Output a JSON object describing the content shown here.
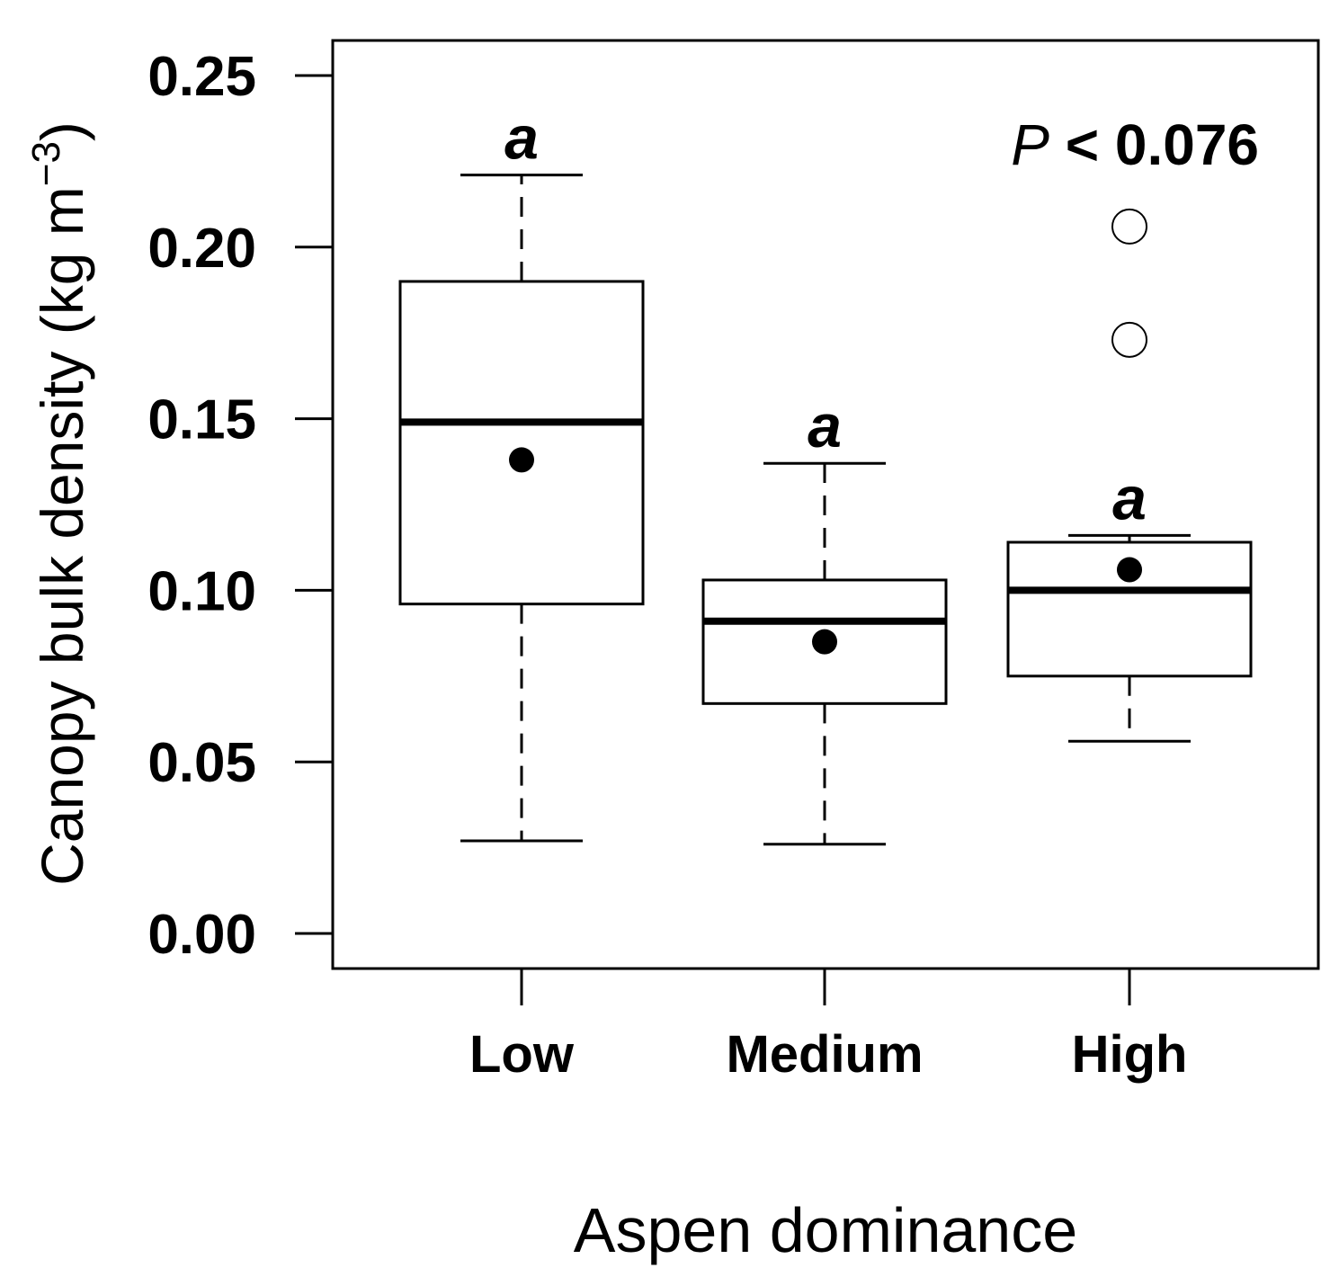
{
  "chart_data": {
    "type": "box",
    "title": "",
    "xlabel": "Aspen dominance",
    "ylabel": "Canopy bulk density (kg m",
    "ylabel_sup": "−3",
    "ylabel_close": ")",
    "ylim": [
      0.0,
      0.25
    ],
    "yticks": [
      0.0,
      0.05,
      0.1,
      0.15,
      0.2,
      0.25
    ],
    "ytick_labels": [
      "0.00",
      "0.05",
      "0.10",
      "0.15",
      "0.20",
      "0.25"
    ],
    "categories": [
      "Low",
      "Medium",
      "High"
    ],
    "boxes": [
      {
        "category": "Low",
        "whisker_low": 0.027,
        "q1": 0.096,
        "median": 0.149,
        "q3": 0.19,
        "whisker_high": 0.221,
        "mean": 0.138,
        "outliers": [],
        "letter": "a"
      },
      {
        "category": "Medium",
        "whisker_low": 0.026,
        "q1": 0.067,
        "median": 0.091,
        "q3": 0.103,
        "whisker_high": 0.137,
        "mean": 0.085,
        "outliers": [],
        "letter": "a"
      },
      {
        "category": "High",
        "whisker_low": 0.056,
        "q1": 0.075,
        "median": 0.1,
        "q3": 0.114,
        "whisker_high": 0.116,
        "mean": 0.106,
        "outliers": [
          0.173,
          0.206
        ],
        "letter": "a"
      }
    ],
    "annotation": {
      "p_symbol": "P",
      "p_rest": " < 0.076"
    },
    "grid": false,
    "legend": "none"
  }
}
